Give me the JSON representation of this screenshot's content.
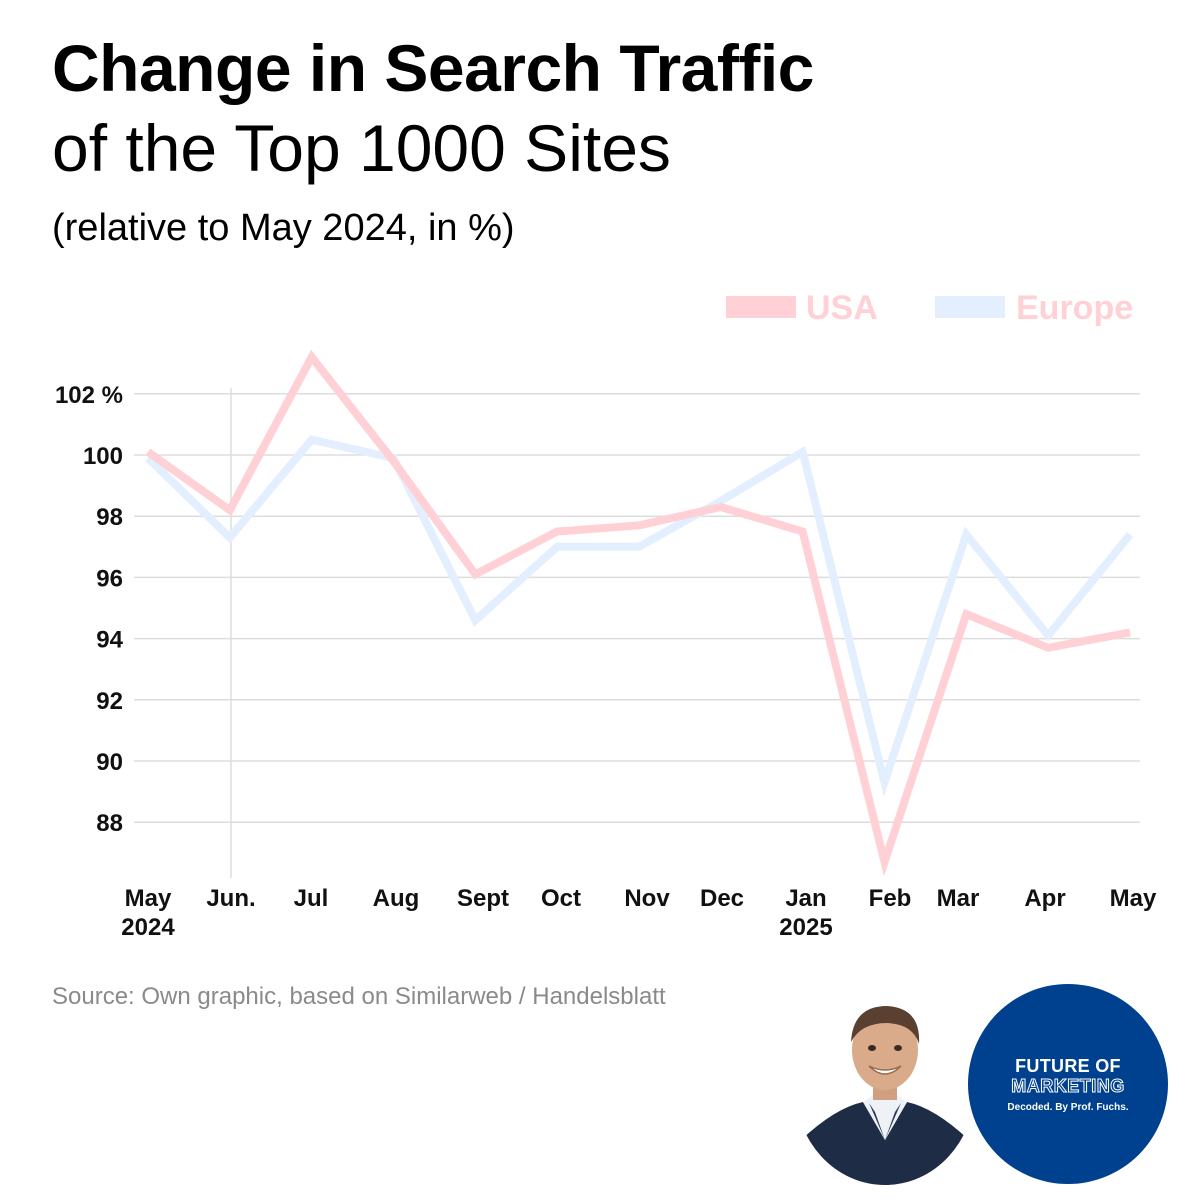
{
  "header": {
    "title_bold": "Change in Search Traffic",
    "title_regular": "of the Top 1000 Sites",
    "subtitle": "(relative to May 2024, in %)"
  },
  "footer": {
    "source": "Source: Own graphic, based on Similarweb / Handelsblatt"
  },
  "badge": {
    "line1": "FUTURE OF",
    "line2": "MARKETING",
    "line3": "Decoded. By Prof. Fuchs."
  },
  "colors": {
    "usa": "#ffd1d6",
    "europe": "#e3efff",
    "grid": "#dddddd",
    "badge": "#00418f"
  },
  "chart_data": {
    "type": "line",
    "categories": [
      [
        "May",
        "2024"
      ],
      [
        "Jun."
      ],
      [
        "Jul"
      ],
      [
        "Aug"
      ],
      [
        "Sept"
      ],
      [
        "Oct"
      ],
      [
        "Nov"
      ],
      [
        "Dec"
      ],
      [
        "Jan",
        "2025"
      ],
      [
        "Feb"
      ],
      [
        "Mar"
      ],
      [
        "Apr"
      ],
      [
        "May"
      ]
    ],
    "series": [
      {
        "name": "USA",
        "color": "#ffd1d6",
        "values": [
          100.1,
          98.2,
          103.2,
          99.8,
          96.1,
          97.5,
          97.7,
          98.3,
          97.5,
          86.7,
          94.8,
          93.7,
          94.2
        ]
      },
      {
        "name": "Europe",
        "color": "#e3efff",
        "values": [
          99.9,
          97.3,
          100.5,
          99.9,
          94.6,
          97.0,
          97.0,
          98.5,
          100.1,
          89.3,
          97.4,
          94.1,
          97.4
        ]
      }
    ],
    "y_ticks": [
      102,
      100,
      98,
      96,
      94,
      92,
      90,
      88
    ],
    "y_tick_suffix_first": " %",
    "ylim": [
      86.5,
      103.5
    ],
    "grid": true,
    "legend": "top-right"
  }
}
